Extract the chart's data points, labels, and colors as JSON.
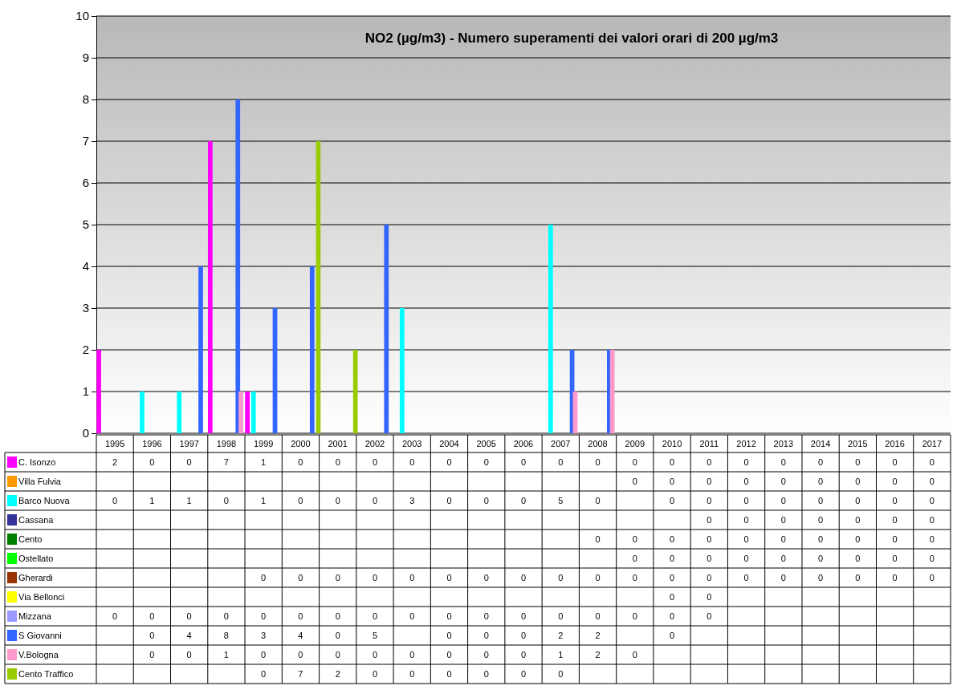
{
  "chart_data": {
    "type": "bar",
    "title": "NO2 (µg/m3) - Numero superamenti dei valori orari di 200 µg/m3",
    "categories": [
      "1995",
      "1996",
      "1997",
      "1998",
      "1999",
      "2000",
      "2001",
      "2002",
      "2003",
      "2004",
      "2005",
      "2006",
      "2007",
      "2008",
      "2009",
      "2010",
      "2011",
      "2012",
      "2013",
      "2014",
      "2015",
      "2016",
      "2017"
    ],
    "series": [
      {
        "name": "C. Isonzo",
        "color": "#ff00ff",
        "values": [
          2,
          0,
          0,
          7,
          1,
          0,
          0,
          0,
          0,
          0,
          0,
          0,
          0,
          0,
          0,
          0,
          0,
          0,
          0,
          0,
          0,
          0,
          0
        ]
      },
      {
        "name": "Villa Fulvia",
        "color": "#ff9900",
        "values": [
          null,
          null,
          null,
          null,
          null,
          null,
          null,
          null,
          null,
          null,
          null,
          null,
          null,
          null,
          0,
          0,
          0,
          0,
          0,
          0,
          0,
          0,
          0
        ]
      },
      {
        "name": "Barco Nuova",
        "color": "#00ffff",
        "values": [
          0,
          1,
          1,
          0,
          1,
          0,
          0,
          0,
          3,
          0,
          0,
          0,
          5,
          0,
          null,
          0,
          0,
          0,
          0,
          0,
          0,
          0,
          0
        ]
      },
      {
        "name": "Cassana",
        "color": "#333399",
        "values": [
          null,
          null,
          null,
          null,
          null,
          null,
          null,
          null,
          null,
          null,
          null,
          null,
          null,
          null,
          null,
          null,
          0,
          0,
          0,
          0,
          0,
          0,
          0
        ]
      },
      {
        "name": "Cento",
        "color": "#008000",
        "values": [
          null,
          null,
          null,
          null,
          null,
          null,
          null,
          null,
          null,
          null,
          null,
          null,
          null,
          0,
          0,
          0,
          0,
          0,
          0,
          0,
          0,
          0,
          0
        ]
      },
      {
        "name": "Ostellato",
        "color": "#00ff00",
        "values": [
          null,
          null,
          null,
          null,
          null,
          null,
          null,
          null,
          null,
          null,
          null,
          null,
          null,
          null,
          0,
          0,
          0,
          0,
          0,
          0,
          0,
          0,
          0
        ]
      },
      {
        "name": "Gherardi",
        "color": "#993300",
        "values": [
          null,
          null,
          null,
          null,
          0,
          0,
          0,
          0,
          0,
          0,
          0,
          0,
          0,
          0,
          0,
          0,
          0,
          0,
          0,
          0,
          0,
          0,
          0
        ]
      },
      {
        "name": "Via Bellonci",
        "color": "#ffff00",
        "values": [
          null,
          null,
          null,
          null,
          null,
          null,
          null,
          null,
          null,
          null,
          null,
          null,
          null,
          null,
          null,
          0,
          0,
          null,
          null,
          null,
          null,
          null,
          null
        ]
      },
      {
        "name": "Mizzana",
        "color": "#9999ff",
        "values": [
          0,
          0,
          0,
          0,
          0,
          0,
          0,
          0,
          0,
          0,
          0,
          0,
          0,
          0,
          0,
          0,
          0,
          null,
          null,
          null,
          null,
          null,
          null
        ]
      },
      {
        "name": "S Giovanni",
        "color": "#3366ff",
        "values": [
          null,
          0,
          4,
          8,
          3,
          4,
          0,
          5,
          null,
          0,
          0,
          0,
          2,
          2,
          null,
          0,
          null,
          null,
          null,
          null,
          null,
          null,
          null
        ]
      },
      {
        "name": "V.Bologna",
        "color": "#ff99cc",
        "values": [
          null,
          0,
          0,
          1,
          0,
          0,
          0,
          0,
          0,
          0,
          0,
          0,
          1,
          2,
          0,
          null,
          null,
          null,
          null,
          null,
          null,
          null,
          null
        ]
      },
      {
        "name": "Cento Traffico",
        "color": "#99cc00",
        "values": [
          null,
          null,
          null,
          null,
          0,
          7,
          2,
          0,
          0,
          0,
          0,
          0,
          0,
          null,
          null,
          null,
          null,
          null,
          null,
          null,
          null,
          null,
          null
        ]
      }
    ],
    "ylim": [
      0,
      10
    ],
    "yticks": [
      0,
      1,
      2,
      3,
      4,
      5,
      6,
      7,
      8,
      9,
      10
    ],
    "grid": "y",
    "data_labels": true,
    "legend": "bottom"
  }
}
